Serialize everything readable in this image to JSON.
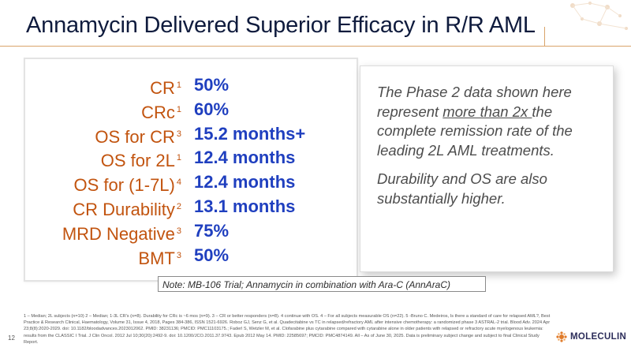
{
  "slide": {
    "title": "Annamycin Delivered Superior Efficacy in R/R AML",
    "page_number": "12"
  },
  "metrics": [
    {
      "label": "CR",
      "ref": "1",
      "value": "50%"
    },
    {
      "label": "CRc",
      "ref": "1",
      "value": "60%"
    },
    {
      "label": "OS for CR",
      "ref": "3",
      "value": "15.2 months+"
    },
    {
      "label": "OS for 2L",
      "ref": "1",
      "value": "12.4 months"
    },
    {
      "label": "OS for (1-7L)",
      "ref": "4",
      "value": "12.4 months"
    },
    {
      "label": "CR Durability",
      "ref": "2",
      "value": "13.1 months"
    },
    {
      "label": "MRD Negative",
      "ref": "3",
      "value": "75%"
    },
    {
      "label": "BMT",
      "ref": "3",
      "value": "50%"
    }
  ],
  "summary": {
    "p1_before": "The Phase 2 data shown here represent ",
    "p1_underlined": "more than 2x ",
    "p1_after": "the complete remission rate of the leading 2L AML treatments.",
    "p2": "Durability and OS are also substantially higher."
  },
  "trial_note": "Note: MB-106 Trial; Annamycin in combination with Ara-C (AnnAraC)",
  "footnotes": "1 – Median; 2L subjects (n=10) 2 – Median; 1-3L CR's (n=8). Durability for CRc is ~6 mos (n=9). 3 – CR or better responders (n=8). 4 continue with OS. 4 – For all subjects measurable OS (n=22). 5 -Bruno C. Medeiros, Is there a standard of care for relapsed AML?, Best Practice & Research Clinical, Haematology, Volume 31, Issue 4, 2018, Pages 384-386, ISSN 1521-6926. Roboz GJ, Senz G, et al. Quadecitabine vs TC in relapsed/refractory AML after intensive chemotherapy: a randomized phase 3 ASTRAL-2 trial. Blood Adv. 2024 Apr 23;8(8):2020-2029. doi: 10.1182/bloodadvances.2023012062. PMID: 38231136; PMCID: PMC11103175.; Faderl S, Wetzler M, et al. Clofarabine plus cytarabine compared with cytarabine alone in older patients with relapsed or refractory acute myelogenous leukemia: results from the CLASSIC I Trial. J Clin Oncol. 2012 Jul 10;30(20):2492-9. doi: 10.1200/JCO.2011.37.9743. Epub 2012 May 14. PMID: 22585697; PMCID: PMC4874149. All – As of June 30, 2025. Data is preliminary subject change and subject to final Clinical Study Report.",
  "logo": {
    "text": "MOLECULIN",
    "icon": "moleculin-logo-icon"
  },
  "colors": {
    "label": "#c2540f",
    "value": "#1f3fbf",
    "title": "#0f1b3d",
    "accent_rule": "#d9a36a"
  }
}
